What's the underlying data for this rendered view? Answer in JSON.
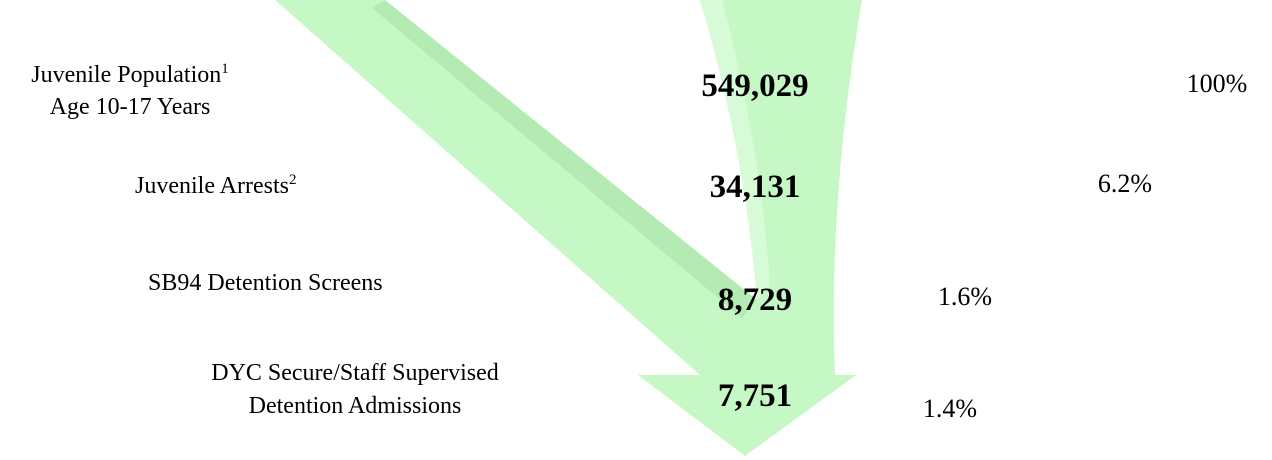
{
  "rows": [
    {
      "label": [
        "Juvenile Population",
        "Age 10-17 Years"
      ],
      "sup": "1",
      "count": "549,029",
      "percent": "100%"
    },
    {
      "label": [
        "Juvenile Arrests"
      ],
      "sup": "2",
      "count": "34,131",
      "percent": "6.2%"
    },
    {
      "label": [
        "SB94 Detention Screens"
      ],
      "count": "8,729",
      "percent": "1.6%"
    },
    {
      "label": [
        "DYC Secure/Staff Supervised",
        "Detention Admissions"
      ],
      "count": "7,751",
      "percent": "1.4%"
    }
  ]
}
